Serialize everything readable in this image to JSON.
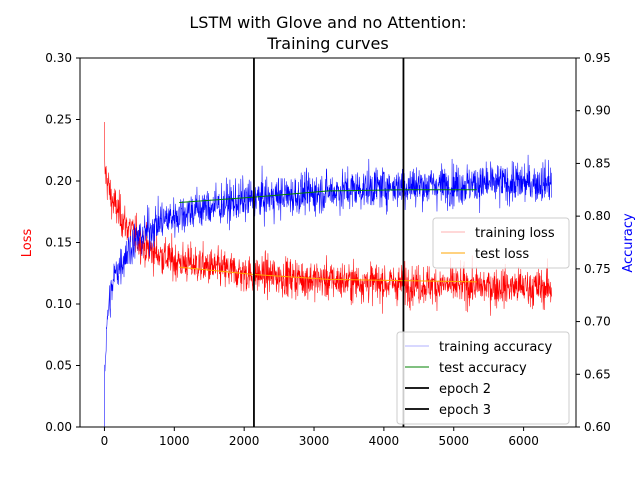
{
  "chart_data": {
    "type": "line",
    "title_line1": "LSTM with Glove and no Attention:",
    "title_line2": "Training curves",
    "xlabel": "",
    "ylabel_left": "Loss",
    "ylabel_right": "Accuracy",
    "xlim": [
      -350,
      6750
    ],
    "ylim_left": [
      0.0,
      0.3
    ],
    "ylim_right": [
      0.6,
      0.95
    ],
    "x_ticks": [
      0,
      1000,
      2000,
      3000,
      4000,
      5000,
      6000
    ],
    "y_ticks_left": [
      "0.00",
      "0.05",
      "0.10",
      "0.15",
      "0.20",
      "0.25",
      "0.30"
    ],
    "y_ticks_left_values": [
      0.0,
      0.05,
      0.1,
      0.15,
      0.2,
      0.25,
      0.3
    ],
    "y_ticks_right": [
      "0.60",
      "0.65",
      "0.70",
      "0.75",
      "0.80",
      "0.85",
      "0.90",
      "0.95"
    ],
    "y_ticks_right_values": [
      0.6,
      0.65,
      0.7,
      0.75,
      0.8,
      0.85,
      0.9,
      0.95
    ],
    "colors": {
      "training_loss": "#ff0000",
      "test_loss": "#ffa500",
      "training_accuracy": "#0000ff",
      "test_accuracy": "#008000",
      "epoch": "#000000",
      "ylabel_left": "#ff0000",
      "ylabel_right": "#0000ff"
    },
    "series": [
      {
        "name": "training loss",
        "axis": "left",
        "x_range": [
          0,
          6400
        ],
        "trend": [
          [
            0,
            0.21
          ],
          [
            100,
            0.185
          ],
          [
            300,
            0.165
          ],
          [
            600,
            0.145
          ],
          [
            1000,
            0.135
          ],
          [
            2000,
            0.125
          ],
          [
            3000,
            0.12
          ],
          [
            4000,
            0.117
          ],
          [
            5000,
            0.115
          ],
          [
            6400,
            0.113
          ]
        ],
        "noise": 0.013,
        "start_value": 0.248
      },
      {
        "name": "test loss",
        "axis": "left",
        "x": [
          1070,
          2140,
          3210,
          4280,
          5330
        ],
        "values": [
          0.13,
          0.124,
          0.12,
          0.119,
          0.118
        ]
      },
      {
        "name": "training accuracy",
        "axis": "right",
        "x_range": [
          0,
          6400
        ],
        "trend": [
          [
            0,
            0.65
          ],
          [
            50,
            0.71
          ],
          [
            150,
            0.745
          ],
          [
            400,
            0.775
          ],
          [
            800,
            0.795
          ],
          [
            1200,
            0.805
          ],
          [
            2000,
            0.815
          ],
          [
            3000,
            0.822
          ],
          [
            4000,
            0.828
          ],
          [
            5000,
            0.83
          ],
          [
            6400,
            0.832
          ]
        ],
        "noise": 0.016,
        "start_value": 0.6
      },
      {
        "name": "test accuracy",
        "axis": "right",
        "x": [
          1070,
          2140,
          3210,
          4280,
          5330
        ],
        "values": [
          0.813,
          0.818,
          0.824,
          0.825,
          0.825
        ]
      }
    ],
    "epoch_lines": [
      {
        "name": "epoch 2",
        "x": 2140
      },
      {
        "name": "epoch 3",
        "x": 4280
      }
    ],
    "legend_upper": [
      "training loss",
      "test loss"
    ],
    "legend_lower": [
      "training accuracy",
      "test accuracy",
      "epoch 2",
      "epoch 3"
    ],
    "legend_placement": "center-right and lower-right"
  }
}
